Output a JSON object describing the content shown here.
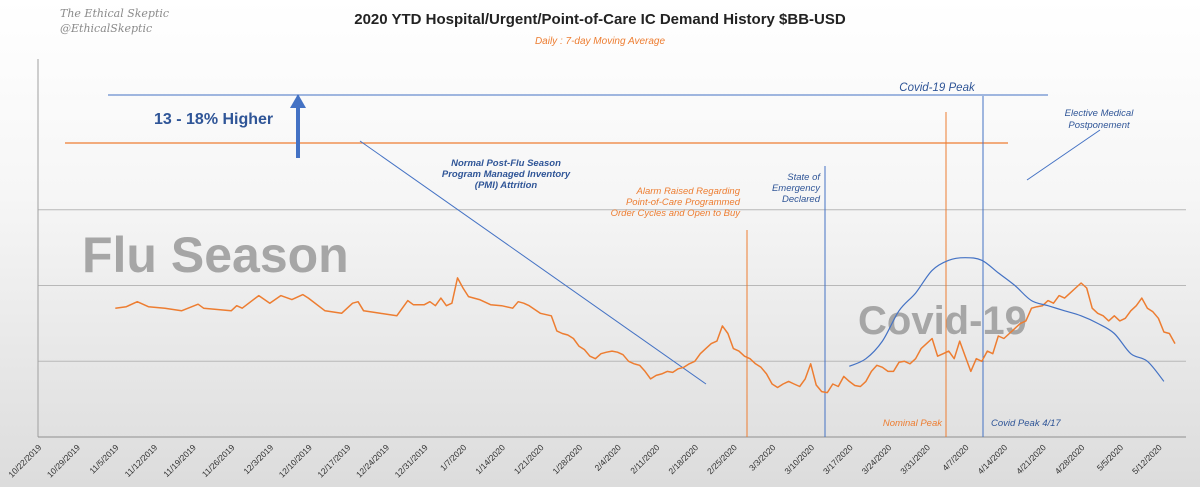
{
  "brand": {
    "name": "The Ethical Skeptic",
    "handle": "@EthicalSkeptic"
  },
  "colors": {
    "orange": "#ED7D31",
    "blue": "#4472C4",
    "darkblue": "#2F5597",
    "grid": "#b8b8b8",
    "text": "#222222",
    "watermark": "#a6a6a6"
  },
  "chart_data": {
    "type": "line",
    "title": "2020 YTD Hospital/Urgent/Point-of-Care IC Demand History $BB-USD",
    "subtitle": "Daily : 7-day Moving Average",
    "xlabel": "",
    "ylabel": "",
    "grid": true,
    "legend": "none",
    "x_tick_labels": [
      "10/22/2019",
      "10/29/2019",
      "11/5/2019",
      "11/12/2019",
      "11/19/2019",
      "11/26/2019",
      "12/3/2019",
      "12/10/2019",
      "12/17/2019",
      "12/24/2019",
      "12/31/2019",
      "1/7/2020",
      "1/14/2020",
      "1/21/2020",
      "1/28/2020",
      "2/4/2020",
      "2/11/2020",
      "2/18/2020",
      "2/25/2020",
      "3/3/2020",
      "3/10/2020",
      "3/17/2020",
      "3/24/2020",
      "3/31/2020",
      "4/7/2020",
      "4/14/2020",
      "4/21/2020",
      "4/28/2020",
      "5/5/2020",
      "5/12/2020"
    ],
    "x_range": [
      "10/22/2019",
      "5/17/2020"
    ],
    "series": [
      {
        "color": "orange",
        "style": "jagged",
        "points": [
          [
            "11/5/2019",
            2.55
          ],
          [
            "11/7/2019",
            2.58
          ],
          [
            "11/9/2019",
            2.68
          ],
          [
            "11/11/2019",
            2.58
          ],
          [
            "11/14/2019",
            2.55
          ],
          [
            "11/17/2019",
            2.5
          ],
          [
            "11/20/2019",
            2.63
          ],
          [
            "11/21/2019",
            2.55
          ],
          [
            "11/24/2019",
            2.52
          ],
          [
            "11/26/2019",
            2.5
          ],
          [
            "11/27/2019",
            2.6
          ],
          [
            "11/28/2019",
            2.55
          ],
          [
            "12/1/2019",
            2.8
          ],
          [
            "12/3/2019",
            2.65
          ],
          [
            "12/5/2019",
            2.8
          ],
          [
            "12/7/2019",
            2.72
          ],
          [
            "12/9/2019",
            2.82
          ],
          [
            "12/10/2019",
            2.75
          ],
          [
            "12/13/2019",
            2.5
          ],
          [
            "12/16/2019",
            2.45
          ],
          [
            "12/18/2019",
            2.65
          ],
          [
            "12/19/2019",
            2.68
          ],
          [
            "12/20/2019",
            2.5
          ],
          [
            "12/23/2019",
            2.45
          ],
          [
            "12/26/2019",
            2.4
          ],
          [
            "12/28/2019",
            2.7
          ],
          [
            "12/29/2019",
            2.62
          ],
          [
            "12/31/2019",
            2.62
          ],
          [
            "1/1/2020",
            2.68
          ],
          [
            "1/2/2020",
            2.6
          ],
          [
            "1/3/2020",
            2.75
          ],
          [
            "1/4/2020",
            2.6
          ],
          [
            "1/5/2020",
            2.65
          ],
          [
            "1/6/2020",
            3.15
          ],
          [
            "1/7/2020",
            2.95
          ],
          [
            "1/8/2020",
            2.78
          ],
          [
            "1/10/2020",
            2.72
          ],
          [
            "1/12/2020",
            2.62
          ],
          [
            "1/14/2020",
            2.6
          ],
          [
            "1/16/2020",
            2.55
          ],
          [
            "1/17/2020",
            2.68
          ],
          [
            "1/18/2020",
            2.65
          ],
          [
            "1/19/2020",
            2.6
          ],
          [
            "1/21/2020",
            2.45
          ],
          [
            "1/23/2020",
            2.4
          ],
          [
            "1/24/2020",
            2.1
          ],
          [
            "1/25/2020",
            2.05
          ],
          [
            "1/26/2020",
            2.02
          ],
          [
            "1/27/2020",
            1.95
          ],
          [
            "1/28/2020",
            1.8
          ],
          [
            "1/29/2020",
            1.73
          ],
          [
            "1/30/2020",
            1.6
          ],
          [
            "1/31/2020",
            1.55
          ],
          [
            "2/1/2020",
            1.65
          ],
          [
            "2/2/2020",
            1.68
          ],
          [
            "2/3/2020",
            1.7
          ],
          [
            "2/4/2020",
            1.68
          ],
          [
            "2/5/2020",
            1.63
          ],
          [
            "2/6/2020",
            1.5
          ],
          [
            "2/7/2020",
            1.45
          ],
          [
            "2/8/2020",
            1.42
          ],
          [
            "2/9/2020",
            1.3
          ],
          [
            "2/10/2020",
            1.15
          ],
          [
            "2/11/2020",
            1.22
          ],
          [
            "2/12/2020",
            1.25
          ],
          [
            "2/13/2020",
            1.3
          ],
          [
            "2/14/2020",
            1.28
          ],
          [
            "2/15/2020",
            1.35
          ],
          [
            "2/16/2020",
            1.38
          ],
          [
            "2/17/2020",
            1.45
          ],
          [
            "2/18/2020",
            1.5
          ],
          [
            "2/19/2020",
            1.65
          ],
          [
            "2/20/2020",
            1.75
          ],
          [
            "2/21/2020",
            1.85
          ],
          [
            "2/22/2020",
            1.9
          ],
          [
            "2/23/2020",
            2.2
          ],
          [
            "2/24/2020",
            2.05
          ],
          [
            "2/25/2020",
            1.75
          ],
          [
            "2/26/2020",
            1.7
          ],
          [
            "2/27/2020",
            1.6
          ],
          [
            "2/28/2020",
            1.55
          ],
          [
            "2/29/2020",
            1.45
          ],
          [
            "3/1/2020",
            1.38
          ],
          [
            "3/2/2020",
            1.25
          ],
          [
            "3/3/2020",
            1.05
          ],
          [
            "3/4/2020",
            0.98
          ],
          [
            "3/5/2020",
            1.05
          ],
          [
            "3/6/2020",
            1.1
          ],
          [
            "3/7/2020",
            1.05
          ],
          [
            "3/8/2020",
            1.0
          ],
          [
            "3/9/2020",
            1.15
          ],
          [
            "3/10/2020",
            1.45
          ],
          [
            "3/11/2020",
            1.03
          ],
          [
            "3/12/2020",
            0.9
          ],
          [
            "3/13/2020",
            0.88
          ],
          [
            "3/14/2020",
            1.05
          ],
          [
            "3/15/2020",
            1.0
          ],
          [
            "3/16/2020",
            1.2
          ],
          [
            "3/17/2020",
            1.1
          ],
          [
            "3/18/2020",
            1.02
          ],
          [
            "3/19/2020",
            1.0
          ],
          [
            "3/20/2020",
            1.1
          ],
          [
            "3/21/2020",
            1.3
          ],
          [
            "3/22/2020",
            1.42
          ],
          [
            "3/23/2020",
            1.38
          ],
          [
            "3/24/2020",
            1.3
          ],
          [
            "3/25/2020",
            1.3
          ],
          [
            "3/26/2020",
            1.48
          ],
          [
            "3/27/2020",
            1.5
          ],
          [
            "3/28/2020",
            1.45
          ],
          [
            "3/29/2020",
            1.55
          ],
          [
            "3/30/2020",
            1.75
          ],
          [
            "3/31/2020",
            1.85
          ],
          [
            "4/1/2020",
            1.95
          ],
          [
            "4/2/2020",
            1.6
          ],
          [
            "4/3/2020",
            1.65
          ],
          [
            "4/4/2020",
            1.7
          ],
          [
            "4/5/2020",
            1.55
          ],
          [
            "4/6/2020",
            1.9
          ],
          [
            "4/7/2020",
            1.6
          ],
          [
            "4/8/2020",
            1.3
          ],
          [
            "4/9/2020",
            1.55
          ],
          [
            "4/10/2020",
            1.5
          ],
          [
            "4/11/2020",
            1.7
          ],
          [
            "4/12/2020",
            1.65
          ],
          [
            "4/13/2020",
            2.0
          ],
          [
            "4/14/2020",
            1.95
          ],
          [
            "4/15/2020",
            2.05
          ],
          [
            "4/16/2020",
            2.15
          ],
          [
            "4/17/2020",
            2.25
          ],
          [
            "4/18/2020",
            2.3
          ],
          [
            "4/19/2020",
            2.55
          ],
          [
            "4/20/2020",
            2.58
          ],
          [
            "4/21/2020",
            2.6
          ],
          [
            "4/22/2020",
            2.7
          ],
          [
            "4/23/2020",
            2.65
          ],
          [
            "4/24/2020",
            2.8
          ],
          [
            "4/25/2020",
            2.75
          ],
          [
            "4/26/2020",
            2.85
          ],
          [
            "4/27/2020",
            2.95
          ],
          [
            "4/28/2020",
            3.05
          ],
          [
            "4/29/2020",
            2.95
          ],
          [
            "4/30/2020",
            2.55
          ],
          [
            "5/1/2020",
            2.45
          ],
          [
            "5/2/2020",
            2.4
          ],
          [
            "5/3/2020",
            2.3
          ],
          [
            "5/4/2020",
            2.4
          ],
          [
            "5/5/2020",
            2.3
          ],
          [
            "5/6/2020",
            2.35
          ],
          [
            "5/7/2020",
            2.5
          ],
          [
            "5/8/2020",
            2.6
          ],
          [
            "5/9/2020",
            2.75
          ],
          [
            "5/10/2020",
            2.55
          ],
          [
            "5/11/2020",
            2.48
          ],
          [
            "5/12/2020",
            2.35
          ],
          [
            "5/13/2020",
            2.08
          ],
          [
            "5/14/2020",
            2.05
          ],
          [
            "5/15/2020",
            1.85
          ]
        ]
      },
      {
        "color": "blue",
        "style": "smooth",
        "points": [
          [
            "3/17/2020",
            1.4
          ],
          [
            "3/20/2020",
            1.55
          ],
          [
            "3/23/2020",
            1.9
          ],
          [
            "3/26/2020",
            2.5
          ],
          [
            "3/29/2020",
            2.85
          ],
          [
            "4/1/2020",
            3.3
          ],
          [
            "4/4/2020",
            3.5
          ],
          [
            "4/7/2020",
            3.55
          ],
          [
            "4/10/2020",
            3.5
          ],
          [
            "4/13/2020",
            3.25
          ],
          [
            "4/16/2020",
            3.0
          ],
          [
            "4/19/2020",
            2.7
          ],
          [
            "4/22/2020",
            2.6
          ],
          [
            "4/25/2020",
            2.5
          ],
          [
            "4/28/2020",
            2.4
          ],
          [
            "5/1/2020",
            2.25
          ],
          [
            "5/4/2020",
            2.05
          ],
          [
            "5/7/2020",
            1.65
          ],
          [
            "5/10/2020",
            1.5
          ],
          [
            "5/13/2020",
            1.1
          ]
        ]
      }
    ],
    "annotations": [
      {
        "text": "13 - 18% Higher",
        "color": "darkblue",
        "bold": true
      },
      {
        "text": "Normal Post-Flu Season Program Managed Inventory (PMI) Attrition",
        "color": "darkblue"
      },
      {
        "text": "Alarm Raised Regarding Point-of-Care Programmed Order Cycles and Open to Buy",
        "color": "orange"
      },
      {
        "text": "State of Emergency Declared",
        "color": "darkblue"
      },
      {
        "text": "Covid-19 Peak",
        "color": "darkblue"
      },
      {
        "text": "Elective Medical Postponement",
        "color": "darkblue"
      },
      {
        "text": "Nominal Peak",
        "color": "orange"
      },
      {
        "text": "Covid Peak 4/17",
        "color": "darkblue"
      }
    ],
    "watermarks": [
      "Flu Season",
      "Covid-19"
    ]
  }
}
